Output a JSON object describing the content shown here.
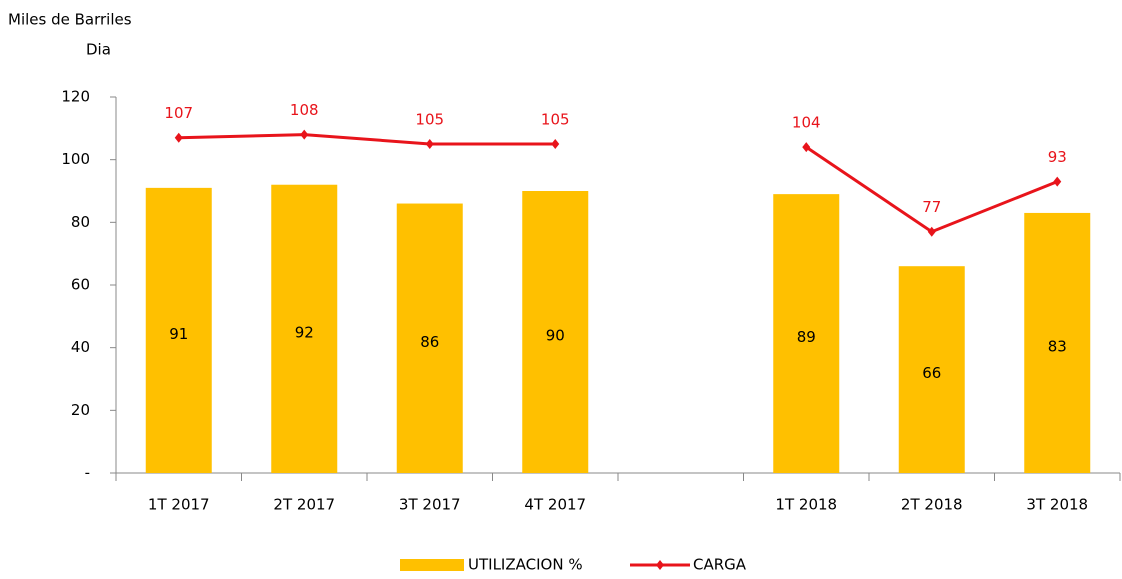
{
  "chart_data": {
    "type": "bar-line",
    "y_label": [
      "Miles de Barriles",
      "Dia"
    ],
    "categories": [
      "1T 2017",
      "2T 2017",
      "3T 2017",
      "4T 2017",
      null,
      "1T 2018",
      "2T 2018",
      "3T 2018"
    ],
    "series": [
      {
        "name": "UTILIZACION %",
        "type": "bar",
        "color": "#ffc000",
        "values": [
          91,
          92,
          86,
          90,
          null,
          89,
          66,
          83
        ]
      },
      {
        "name": "CARGA",
        "type": "line",
        "color": "#e8141b",
        "values": [
          107,
          108,
          105,
          105,
          null,
          104,
          77,
          93
        ]
      }
    ],
    "ylim": [
      0,
      120
    ],
    "yticks": [
      {
        "value": 0,
        "label": "-"
      },
      20,
      40,
      60,
      80,
      100,
      120
    ],
    "grid": false,
    "legend": "bottom"
  }
}
